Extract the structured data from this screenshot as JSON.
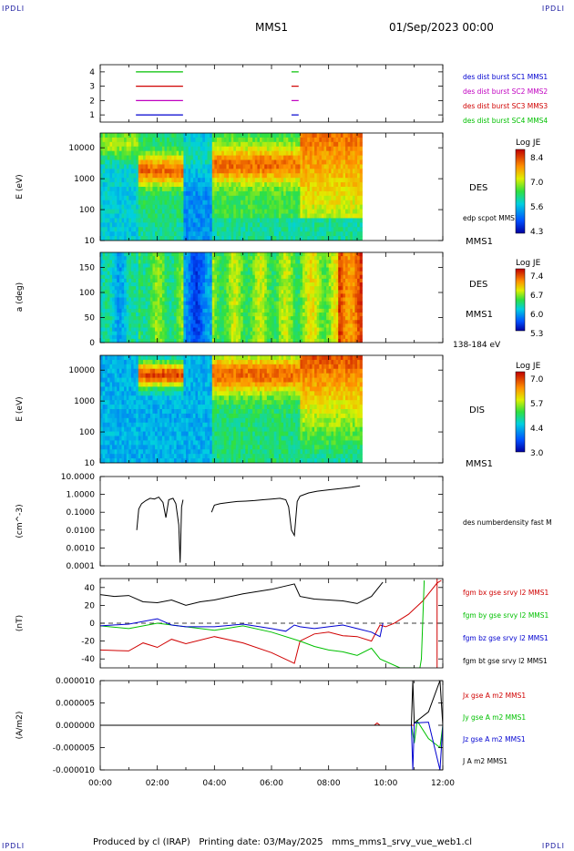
{
  "corner_tl": "IPDLI",
  "corner_tr": "IPDLI",
  "corner_bl": "IPDLI",
  "corner_br": "IPDLI",
  "header": {
    "title": "MMS1",
    "date": "01/Sep/2023 00:00"
  },
  "footer": {
    "text": "Produced by cl (IRAP)   Printing date: 03/May/2025   mms_mms1_srvy_vue_web1.cl"
  },
  "colors": {
    "c1": "#0000d0",
    "c2": "#c000c0",
    "c3": "#d00000",
    "c4": "#00c000",
    "fgm_bx": "#d00000",
    "fgm_by": "#00c000",
    "fgm_bz": "#0000d0",
    "fgm_bt": "#000000"
  },
  "chart_data": [
    {
      "type": "timeline",
      "x_range": [
        "00:00",
        "12:00"
      ],
      "ylim": [
        0.5,
        4.5
      ],
      "y_ticks": [
        "4",
        "3",
        "2",
        "1"
      ],
      "series": [
        {
          "name": "des dist burst SC1 MMS1",
          "level": 1,
          "intervals": [
            [
              1.25,
              2.9
            ],
            [
              6.7,
              6.95
            ]
          ]
        },
        {
          "name": "des dist burst SC2 MMS2",
          "level": 2,
          "intervals": [
            [
              1.25,
              2.9
            ],
            [
              6.7,
              6.95
            ]
          ]
        },
        {
          "name": "des dist burst SC3 MMS3",
          "level": 3,
          "intervals": [
            [
              1.25,
              2.9
            ],
            [
              6.7,
              6.95
            ]
          ]
        },
        {
          "name": "des dist burst SC4 MMS4",
          "level": 4,
          "intervals": [
            [
              1.25,
              2.9
            ],
            [
              6.7,
              6.95
            ]
          ]
        }
      ]
    },
    {
      "type": "heatmap",
      "ylabel": "E (eV)",
      "y_scale": "log",
      "ylim": [
        10,
        30000
      ],
      "y_ticks": [
        "10000",
        "1000",
        "100",
        "10"
      ],
      "label": "DES",
      "extra_label": "edp scpot MMS1",
      "spacecraft": "MMS1",
      "colorbar": {
        "title": "Log JE",
        "ticks": [
          "8.4",
          "7.0",
          "5.6",
          "4.3"
        ]
      },
      "data_extent": [
        "00:00",
        "09:10"
      ]
    },
    {
      "type": "heatmap",
      "ylabel": "a (deg)",
      "ylim": [
        0,
        180
      ],
      "y_ticks": [
        "150",
        "100",
        "50",
        "0"
      ],
      "label": "DES",
      "spacecraft": "MMS1",
      "energy_label": "138-184 eV",
      "colorbar": {
        "title": "Log JE",
        "ticks": [
          "7.4",
          "6.7",
          "6.0",
          "5.3"
        ]
      },
      "data_extent": [
        "00:00",
        "09:10"
      ]
    },
    {
      "type": "heatmap",
      "ylabel": "E (eV)",
      "y_scale": "log",
      "ylim": [
        10,
        30000
      ],
      "y_ticks": [
        "10000",
        "1000",
        "100",
        "10"
      ],
      "label": "DIS",
      "spacecraft": "MMS1",
      "colorbar": {
        "title": "Log JE",
        "ticks": [
          "7.0",
          "5.7",
          "4.4",
          "3.0"
        ]
      },
      "data_extent": [
        "00:00",
        "09:10"
      ]
    },
    {
      "type": "line",
      "ylabel": "(cm^-3)",
      "y_scale": "log",
      "ylim": [
        0.0001,
        10
      ],
      "y_ticks": [
        "10.0000",
        "1.0000",
        "0.1000",
        "0.0100",
        "0.0010",
        "0.0001"
      ],
      "series": [
        {
          "name": "des numberdensity fast M",
          "segments": [
            [
              [
                1.28,
                0.01
              ],
              [
                1.35,
                0.15
              ],
              [
                1.45,
                0.3
              ],
              [
                1.6,
                0.45
              ],
              [
                1.75,
                0.6
              ],
              [
                1.9,
                0.55
              ],
              [
                2.05,
                0.7
              ],
              [
                2.2,
                0.35
              ],
              [
                2.3,
                0.05
              ],
              [
                2.4,
                0.5
              ],
              [
                2.55,
                0.6
              ],
              [
                2.65,
                0.3
              ],
              [
                2.75,
                0.02
              ],
              [
                2.8,
                0.00015
              ],
              [
                2.85,
                0.2
              ],
              [
                2.9,
                0.5
              ]
            ],
            [
              [
                3.9,
                0.1
              ],
              [
                4.0,
                0.25
              ],
              [
                4.2,
                0.3
              ],
              [
                4.5,
                0.35
              ],
              [
                4.8,
                0.4
              ],
              [
                5.1,
                0.42
              ],
              [
                5.4,
                0.45
              ],
              [
                5.7,
                0.5
              ],
              [
                6.0,
                0.55
              ],
              [
                6.3,
                0.6
              ],
              [
                6.5,
                0.5
              ],
              [
                6.6,
                0.2
              ],
              [
                6.7,
                0.01
              ],
              [
                6.8,
                0.005
              ],
              [
                6.9,
                0.4
              ],
              [
                7.0,
                0.8
              ]
            ],
            [
              [
                7.0,
                0.8
              ],
              [
                7.3,
                1.2
              ],
              [
                7.6,
                1.5
              ],
              [
                8.0,
                1.8
              ],
              [
                8.4,
                2.1
              ],
              [
                8.8,
                2.5
              ],
              [
                9.1,
                3.0
              ]
            ]
          ]
        }
      ]
    },
    {
      "type": "line",
      "ylabel": "(nT)",
      "ylim": [
        -50,
        50
      ],
      "y_ticks": [
        "40",
        "20",
        "0",
        "-20",
        "-40"
      ],
      "series": [
        {
          "name": "fgm bx gse srvy l2 MMS1",
          "points": [
            [
              0,
              -30
            ],
            [
              1,
              -31
            ],
            [
              1.5,
              -22
            ],
            [
              2,
              -27
            ],
            [
              2.5,
              -18
            ],
            [
              3,
              -23
            ],
            [
              4,
              -15
            ],
            [
              5,
              -22
            ],
            [
              6,
              -33
            ],
            [
              6.8,
              -45
            ],
            [
              7,
              -20
            ],
            [
              7.5,
              -12
            ],
            [
              8,
              -10
            ],
            [
              8.5,
              -14
            ],
            [
              9,
              -15
            ],
            [
              9.5,
              -20
            ],
            [
              9.8,
              -2
            ],
            [
              10,
              -4
            ],
            [
              10.3,
              0
            ],
            [
              10.8,
              10
            ],
            [
              11.3,
              25
            ],
            [
              11.8,
              45
            ],
            [
              11.95,
              48
            ]
          ]
        },
        {
          "name": "fgm by gse srvy l2 MMS1",
          "points": [
            [
              0,
              -3
            ],
            [
              1,
              -6
            ],
            [
              2,
              0
            ],
            [
              3,
              -4
            ],
            [
              4,
              -8
            ],
            [
              5,
              -3
            ],
            [
              6,
              -10
            ],
            [
              7,
              -20
            ],
            [
              7.5,
              -26
            ],
            [
              8,
              -30
            ],
            [
              8.5,
              -32
            ],
            [
              9,
              -36
            ],
            [
              9.5,
              -28
            ],
            [
              9.8,
              -40
            ],
            [
              10.5,
              -50
            ],
            [
              11.2,
              -50
            ],
            [
              11.25,
              -40
            ],
            [
              11.35,
              48
            ]
          ]
        },
        {
          "name": "fgm bz gse srvy l2 MMS1",
          "points": [
            [
              0,
              -3
            ],
            [
              1,
              -1
            ],
            [
              2,
              5
            ],
            [
              2.5,
              -2
            ],
            [
              3,
              -4
            ],
            [
              4,
              -4
            ],
            [
              5,
              -1
            ],
            [
              6,
              -6
            ],
            [
              6.5,
              -9
            ],
            [
              6.8,
              -2
            ],
            [
              7,
              -4
            ],
            [
              7.5,
              -6
            ],
            [
              8,
              -4
            ],
            [
              8.5,
              -2
            ],
            [
              9,
              -6
            ],
            [
              9.5,
              -10
            ],
            [
              9.8,
              -15
            ],
            [
              9.9,
              0
            ]
          ]
        },
        {
          "name": "fgm bt gse srvy l2 MMS1",
          "points": [
            [
              0,
              32
            ],
            [
              0.5,
              30
            ],
            [
              1,
              31
            ],
            [
              1.5,
              24
            ],
            [
              2,
              23
            ],
            [
              2.5,
              26
            ],
            [
              3,
              20
            ],
            [
              3.5,
              24
            ],
            [
              4,
              26
            ],
            [
              5,
              33
            ],
            [
              6,
              38
            ],
            [
              6.8,
              44
            ],
            [
              7,
              30
            ],
            [
              7.5,
              27
            ],
            [
              8,
              26
            ],
            [
              8.5,
              25
            ],
            [
              9,
              22
            ],
            [
              9.5,
              30
            ],
            [
              9.9,
              46
            ]
          ]
        }
      ]
    },
    {
      "type": "line",
      "ylabel": "(A/m2)",
      "ylim": [
        -1e-05,
        1e-05
      ],
      "y_ticks": [
        "0.000010",
        "0.000005",
        "0.000000",
        "-0.000005",
        "-0.000010"
      ],
      "x_ticks": [
        "00:00",
        "02:00",
        "04:00",
        "06:00",
        "08:00",
        "10:00",
        "12:00"
      ],
      "series": [
        {
          "name": "Jx gse A m2 MMS1",
          "points": [
            [
              0,
              0
            ],
            [
              9.6,
              0
            ],
            [
              9.7,
              5e-07
            ],
            [
              9.8,
              0
            ],
            [
              11,
              0
            ]
          ]
        },
        {
          "name": "Jy gse A m2 MMS1",
          "points": [
            [
              0,
              0
            ],
            [
              10.9,
              0
            ],
            [
              11.0,
              -4e-06
            ],
            [
              11.1,
              1e-06
            ],
            [
              11.5,
              -3e-06
            ],
            [
              11.9,
              -5e-06
            ],
            [
              12,
              0
            ]
          ]
        },
        {
          "name": "Jz gse A m2 MMS1",
          "points": [
            [
              0,
              0
            ],
            [
              10.9,
              0
            ],
            [
              10.95,
              -1e-05
            ],
            [
              11.0,
              5e-07
            ],
            [
              11.5,
              7e-07
            ],
            [
              11.9,
              -1e-05
            ],
            [
              12,
              0
            ]
          ]
        },
        {
          "name": "J A m2 MMS1",
          "points": [
            [
              0,
              0
            ],
            [
              10.9,
              0
            ],
            [
              10.95,
              1e-05
            ],
            [
              11.0,
              5e-07
            ],
            [
              11.5,
              3e-06
            ],
            [
              11.9,
              1e-05
            ],
            [
              12,
              0
            ]
          ]
        }
      ]
    }
  ]
}
